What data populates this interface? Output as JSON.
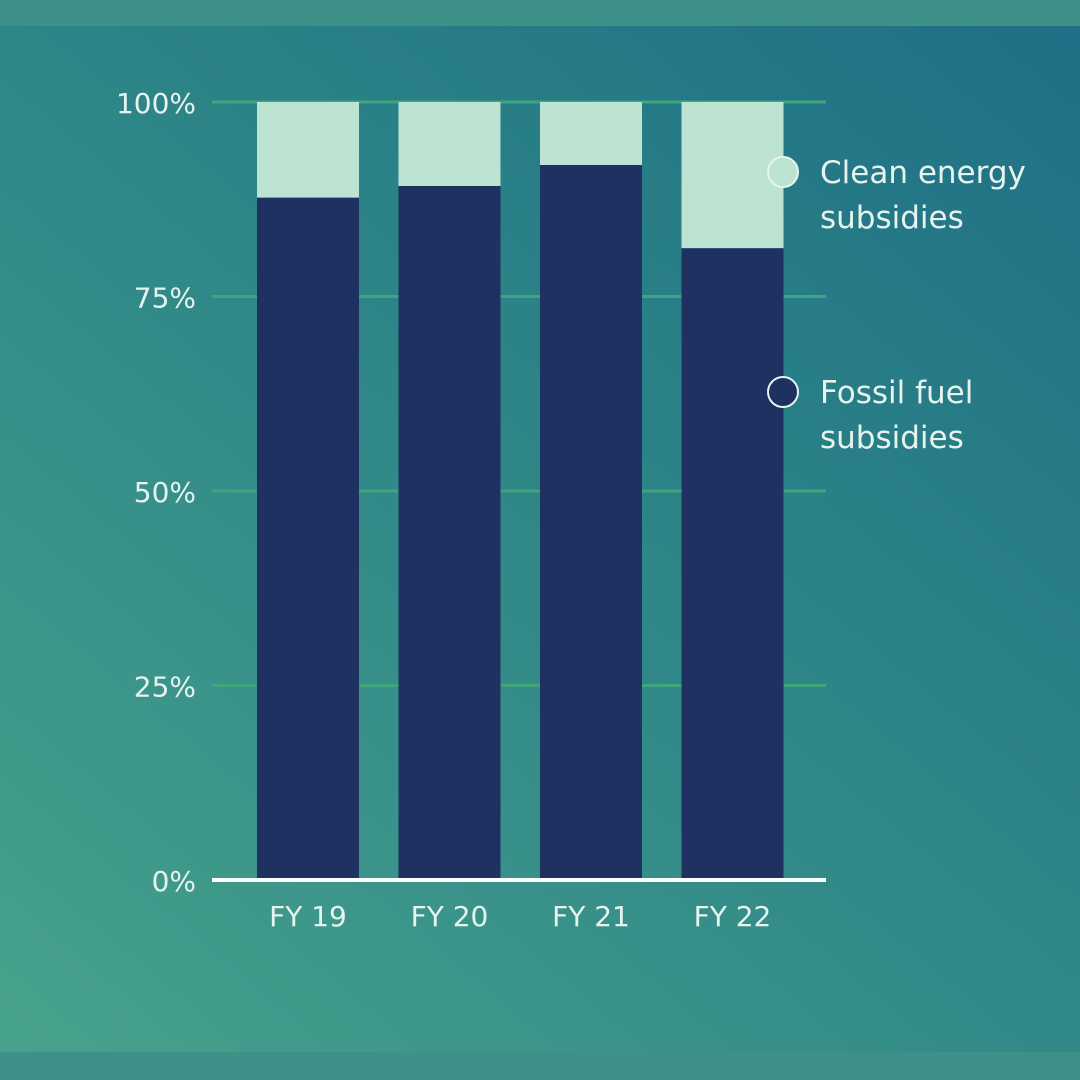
{
  "chart_data": {
    "type": "bar",
    "stacked": true,
    "normalized": true,
    "categories": [
      "FY 19",
      "FY 20",
      "FY 21",
      "FY 22"
    ],
    "series": [
      {
        "name": "Fossil fuel subsidies",
        "values": [
          87.7,
          89.2,
          91.9,
          81.2
        ]
      },
      {
        "name": "Clean energy subsidies",
        "values": [
          12.3,
          10.8,
          8.1,
          18.8
        ]
      }
    ],
    "ylim": [
      0,
      100
    ],
    "yticks": [
      0,
      25,
      50,
      75,
      100
    ],
    "ytick_labels": [
      "0%",
      "25%",
      "50%",
      "75%",
      "100%"
    ],
    "grid": true,
    "legend": {
      "placement": "right",
      "entries": [
        {
          "label_lines": [
            "Clean energy",
            "subsidies"
          ]
        },
        {
          "label_lines": [
            "Fossil fuel",
            "subsidies"
          ]
        }
      ]
    },
    "colors": {
      "fossil": "#1f3160",
      "clean": "#bde3d3",
      "grid": "#3fa57c",
      "axis": "#ffffff",
      "text": "#e6f3ee"
    }
  }
}
